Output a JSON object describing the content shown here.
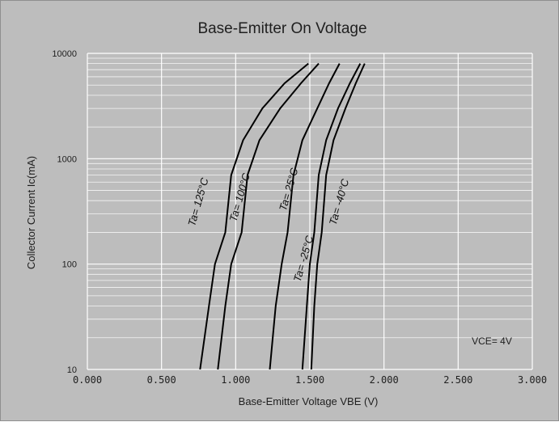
{
  "chart_data": {
    "type": "line",
    "title": "Base-Emitter On Voltage",
    "xlabel": "Base-Emitter Voltage  VBE (V)",
    "ylabel": "Collector Current  Ic(mA)",
    "x_scale": "linear",
    "y_scale": "log",
    "xlim": [
      0,
      3
    ],
    "ylim": [
      10,
      10000
    ],
    "x_ticks": [
      "0.000",
      "0.500",
      "1.000",
      "1.500",
      "2.000",
      "2.500",
      "3.000"
    ],
    "y_ticks": [
      "10",
      "100",
      "1000",
      "10000"
    ],
    "grid": true,
    "annotation": "VCE= 4V",
    "series": [
      {
        "name": "Ta= 125°C",
        "x": [
          0.76,
          0.82,
          0.86,
          0.93,
          0.97,
          1.05,
          1.18,
          1.33,
          1.49
        ],
        "y": [
          10,
          40,
          100,
          200,
          700,
          1500,
          3000,
          5200,
          8000
        ]
      },
      {
        "name": "Ta= 100°C",
        "x": [
          0.88,
          0.93,
          0.97,
          1.04,
          1.08,
          1.16,
          1.3,
          1.44,
          1.56
        ],
        "y": [
          10,
          40,
          100,
          200,
          700,
          1500,
          3000,
          5200,
          8000
        ]
      },
      {
        "name": "Ta= 25°C",
        "x": [
          1.23,
          1.27,
          1.31,
          1.35,
          1.39,
          1.45,
          1.55,
          1.63,
          1.7
        ],
        "y": [
          10,
          40,
          100,
          200,
          700,
          1500,
          3000,
          5200,
          8000
        ]
      },
      {
        "name": "Ta= -25°C",
        "x": [
          1.45,
          1.48,
          1.5,
          1.53,
          1.56,
          1.61,
          1.69,
          1.77,
          1.84
        ],
        "y": [
          10,
          40,
          100,
          200,
          700,
          1500,
          3000,
          5200,
          8000
        ]
      },
      {
        "name": "Ta= -40°C",
        "x": [
          1.51,
          1.53,
          1.55,
          1.58,
          1.61,
          1.66,
          1.74,
          1.81,
          1.87
        ],
        "y": [
          10,
          40,
          100,
          200,
          700,
          1500,
          3000,
          5200,
          8000
        ]
      }
    ]
  }
}
